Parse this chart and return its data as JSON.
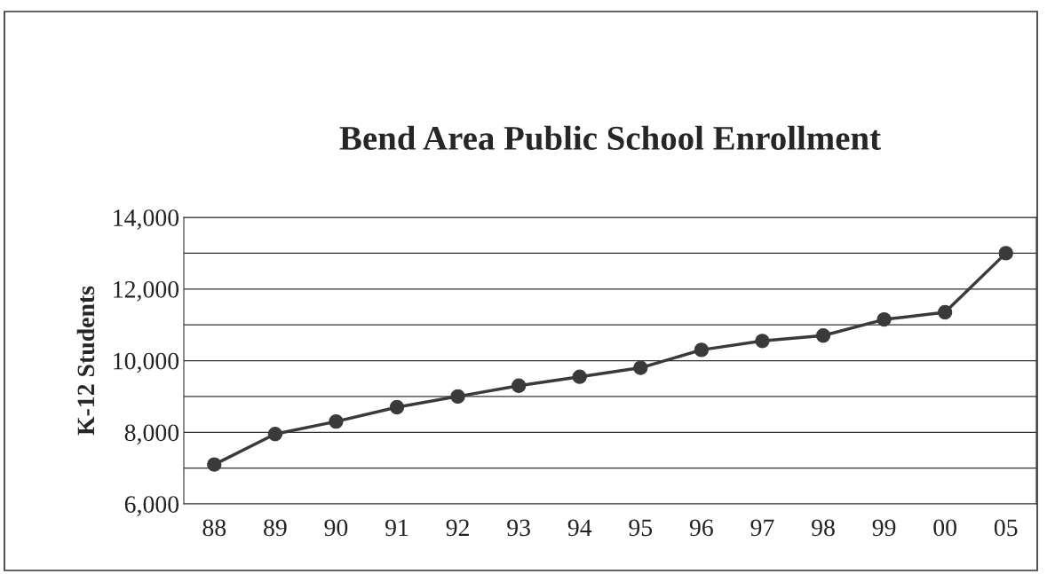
{
  "chart_data": {
    "type": "line",
    "title": "Bend Area Public School Enrollment",
    "ylabel": "K-12 Students",
    "categories": [
      "88",
      "89",
      "90",
      "91",
      "92",
      "93",
      "94",
      "95",
      "96",
      "97",
      "98",
      "99",
      "00",
      "05"
    ],
    "series": [
      {
        "color": "#3a3a3a",
        "values": [
          7100,
          7950,
          8300,
          8700,
          9000,
          9300,
          9550,
          9800,
          10300,
          10550,
          10700,
          11150,
          11350,
          13000
        ]
      }
    ],
    "ylim": [
      6000,
      14000
    ],
    "yticks": [
      {
        "value": 6000,
        "label": "6,000"
      },
      {
        "value": 7000,
        "label": null
      },
      {
        "value": 8000,
        "label": "8,000"
      },
      {
        "value": 9000,
        "label": null
      },
      {
        "value": 10000,
        "label": "10,000"
      },
      {
        "value": 11000,
        "label": null
      },
      {
        "value": 12000,
        "label": "12,000"
      },
      {
        "value": 13000,
        "label": null
      },
      {
        "value": 14000,
        "label": "14,000"
      }
    ],
    "grid": "y",
    "marker": "circle",
    "line_style": "solid",
    "legend": false
  }
}
